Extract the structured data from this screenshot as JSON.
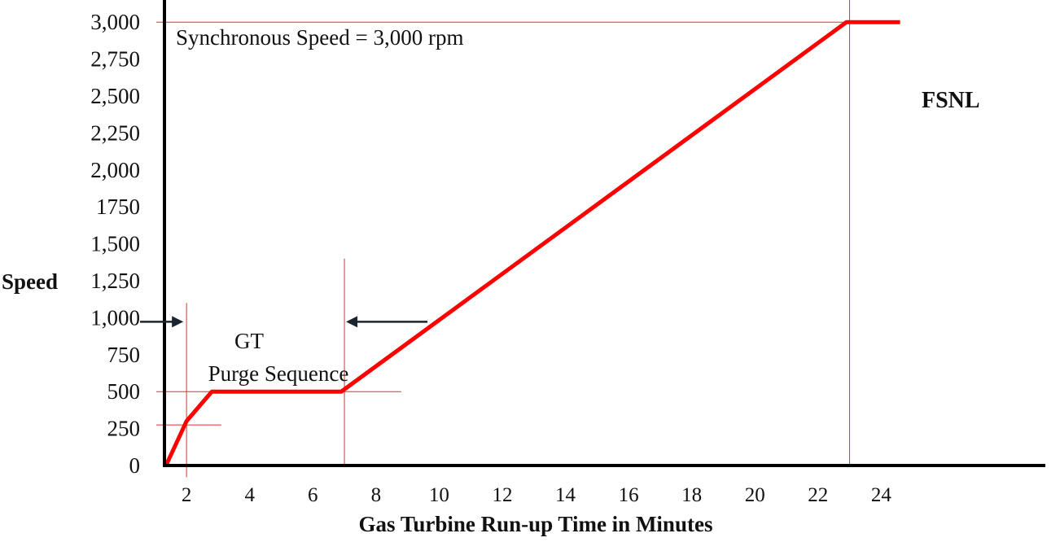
{
  "chart_data": {
    "type": "line",
    "title": "Synchronous Speed = 3,000 rpm",
    "xlabel": "Gas Turbine Run-up Time in Minutes",
    "ylabel": "Speed",
    "xlim": [
      1.3,
      29.2
    ],
    "ylim": [
      0,
      3150
    ],
    "x_ticks": [
      {
        "value": 2,
        "label": "2"
      },
      {
        "value": 4,
        "label": "4"
      },
      {
        "value": 6,
        "label": "6"
      },
      {
        "value": 8,
        "label": "8"
      },
      {
        "value": 10,
        "label": "10"
      },
      {
        "value": 12,
        "label": "12"
      },
      {
        "value": 14,
        "label": "14"
      },
      {
        "value": 16,
        "label": "16"
      },
      {
        "value": 18,
        "label": "18"
      },
      {
        "value": 20,
        "label": "20"
      },
      {
        "value": 22,
        "label": "22"
      },
      {
        "value": 24,
        "label": "24"
      }
    ],
    "y_ticks": [
      {
        "value": 0,
        "label": "0"
      },
      {
        "value": 250,
        "label": "250"
      },
      {
        "value": 500,
        "label": "500"
      },
      {
        "value": 750,
        "label": "750"
      },
      {
        "value": 1000,
        "label": "1,000"
      },
      {
        "value": 1250,
        "label": "1,250"
      },
      {
        "value": 1500,
        "label": "1,500"
      },
      {
        "value": 1750,
        "label": "1750"
      },
      {
        "value": 2000,
        "label": "2,000"
      },
      {
        "value": 2250,
        "label": "2,250"
      },
      {
        "value": 2500,
        "label": "2,500"
      },
      {
        "value": 2750,
        "label": "2,750"
      },
      {
        "value": 3000,
        "label": "3,000"
      }
    ],
    "series": [
      {
        "color": "#ff0000",
        "points": [
          {
            "x": 1.35,
            "y": 0
          },
          {
            "x": 2.0,
            "y": 300
          },
          {
            "x": 2.8,
            "y": 500
          },
          {
            "x": 6.9,
            "y": 500
          },
          {
            "x": 22.9,
            "y": 3000
          },
          {
            "x": 24.6,
            "y": 3000
          }
        ]
      }
    ],
    "annotations": {
      "purge_line1": "GT",
      "purge_line2": "Purge Sequence",
      "purge_start_x": 2.0,
      "purge_end_x": 7.0,
      "end_label": "FSNL"
    },
    "reference_lines": {
      "color": "#e03030",
      "arrow_color": "#1a2530",
      "horizontal": [
        {
          "y": 3000,
          "x_from": 1.3,
          "x_to": 23.5
        },
        {
          "y": 500,
          "x_from": 1.3,
          "x_to": 8.8
        },
        {
          "y": 275,
          "x_from": 1.3,
          "x_to": 3.1
        }
      ],
      "vertical": [
        {
          "x": 2.0,
          "y_from": -80,
          "y_to": 1100
        },
        {
          "x": 7.0,
          "y_from": 0,
          "y_to": 1400
        },
        {
          "x": 23.0,
          "y_from": 0,
          "y_to": 3320
        }
      ]
    },
    "grid": false,
    "legend": "none"
  }
}
